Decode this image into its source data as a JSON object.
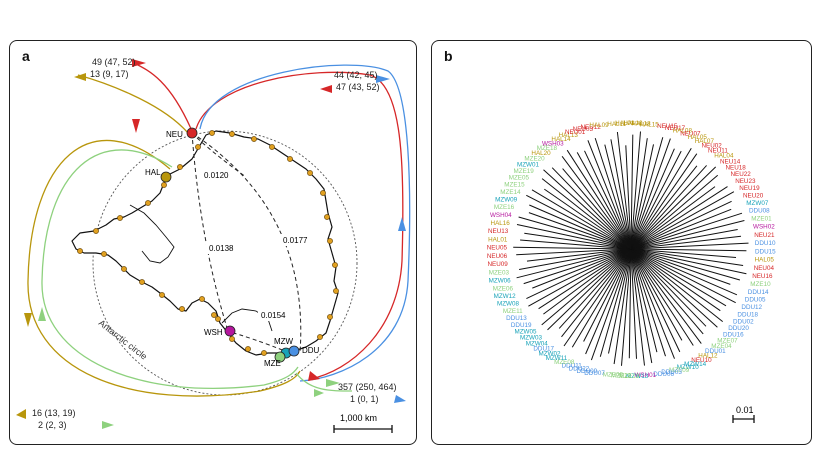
{
  "panel_a": {
    "label": "a",
    "flows": [
      {
        "text": "49 (47, 52)",
        "color": "#d62728"
      },
      {
        "text": "13 (9, 17)",
        "color": "#b8960c"
      },
      {
        "text": "44 (42, 45)",
        "color": "#4a90e2"
      },
      {
        "text": "47 (43, 52)",
        "color": "#d62728"
      },
      {
        "text": "357 (250, 464)",
        "color": "#7cc86a"
      },
      {
        "text": "1 (0, 1)",
        "color": "#4a90e2"
      },
      {
        "text": "16 (13, 19)",
        "color": "#b8960c"
      },
      {
        "text": "2 (2, 3)",
        "color": "#7cc86a"
      }
    ],
    "sites": [
      {
        "text": "NEU",
        "color": "#d62728"
      },
      {
        "text": "HAL",
        "color": "#b8960c"
      },
      {
        "text": "WSH",
        "color": "#b5179e"
      },
      {
        "text": "MZW",
        "color": "#17a2b8"
      },
      {
        "text": "MZE",
        "color": "#7cc86a"
      },
      {
        "text": "DDU",
        "color": "#4a90e2"
      }
    ],
    "distances": [
      "0.0120",
      "0.0138",
      "0.0177",
      "0.0154"
    ],
    "circle_label": "Antarctic circle",
    "scale_label": "1,000 km"
  },
  "panel_b": {
    "label": "b",
    "scale_label": "0.01",
    "colors": {
      "NEU": "#d62728",
      "HAL": "#b8960c",
      "WSH": "#b5179e",
      "MZW": "#17a2b8",
      "MZE": "#8ed17e",
      "DDU": "#4a90e2"
    },
    "leaves": [
      "HAL03",
      "HAL10",
      "HAL18",
      "HAL15",
      "NEU15",
      "NEU17",
      "HAL08",
      "NEU07",
      "HAL05",
      "HAL07",
      "NEU02",
      "NEU11",
      "HAL04",
      "NEU14",
      "NEU18",
      "NEU22",
      "NEU23",
      "NEU19",
      "NEU20",
      "MZW07",
      "DDU08",
      "MZE01",
      "WSH02",
      "NEU21",
      "DDU10",
      "DDU15",
      "HAL05",
      "NEU04",
      "NEU16",
      "MZE10",
      "DDU14",
      "DDU05",
      "DDU12",
      "DDU18",
      "DDU02",
      "DDU20",
      "DDU16",
      "MZE07",
      "MZE04",
      "DDU01",
      "HAL12",
      "NEU10",
      "MZW14",
      "MZW10",
      "MZE09",
      "DDU03",
      "DDU06",
      "WSH01",
      "MZW13",
      "MZE13",
      "MZE12",
      "MZE02",
      "DDU07",
      "DDU09",
      "DDU22",
      "DDU11",
      "MZE08",
      "MZW11",
      "MZW02",
      "DDU17",
      "MZW04",
      "MZW03",
      "MZW05",
      "DDU19",
      "DDU13",
      "MZE11",
      "MZW08",
      "MZW12",
      "MZE06",
      "MZW06",
      "MZE03",
      "NEU09",
      "NEU06",
      "NEU05",
      "HAL01",
      "NEU13",
      "HAL16",
      "WSH04",
      "MZE16",
      "MZW09",
      "MZE14",
      "MZE15",
      "MZE05",
      "MZE19",
      "MZW01",
      "MZE20",
      "HAL20",
      "MZE18",
      "WSH03",
      "HAL14",
      "HAL13",
      "NEU01",
      "NEU03",
      "NEU12",
      "HAL09",
      "HAL11"
    ]
  }
}
